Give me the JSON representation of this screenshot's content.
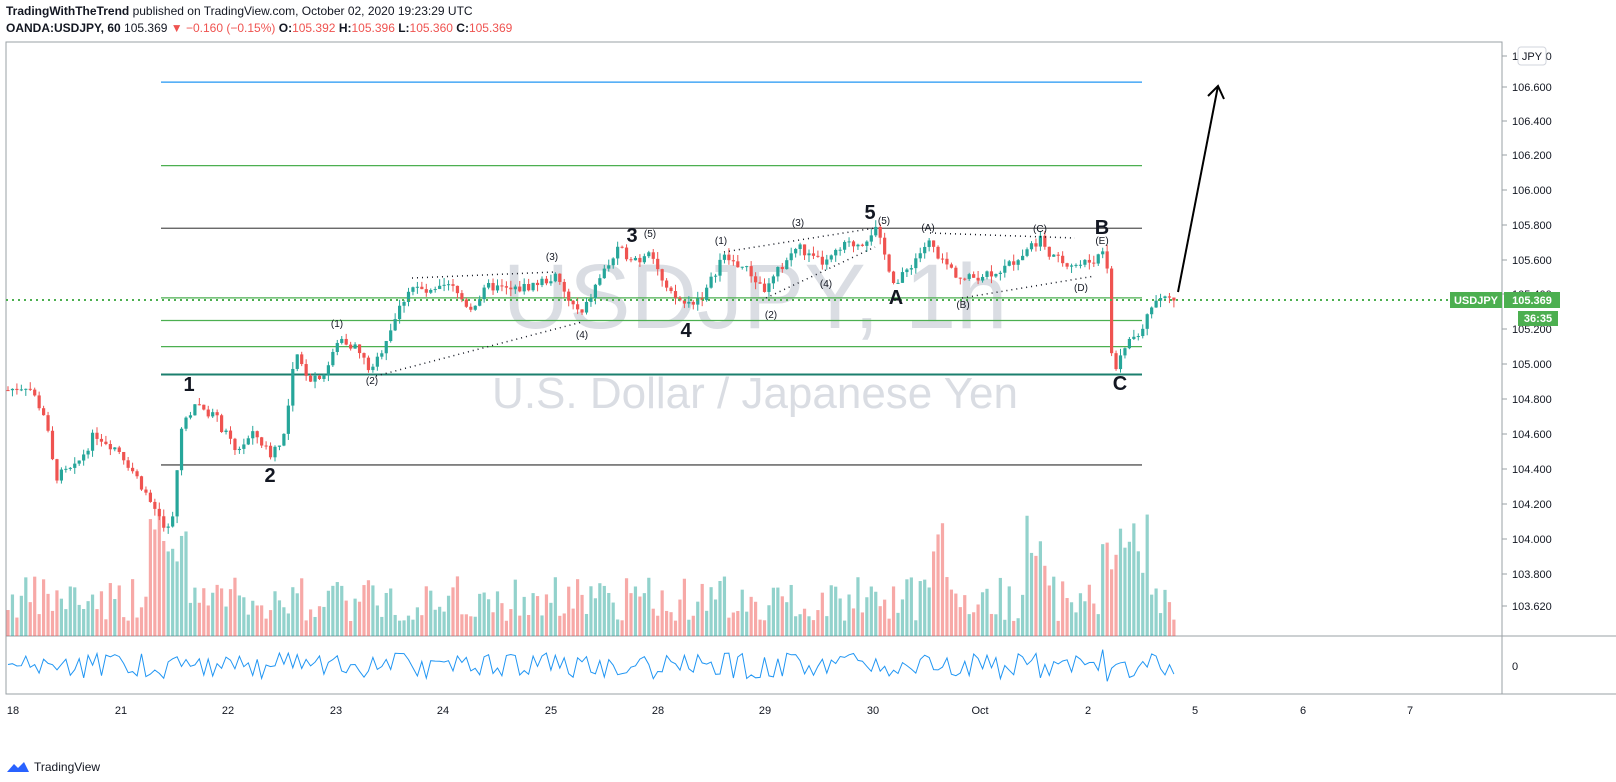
{
  "header": {
    "publisher": "TradingWithTheTrend",
    "published_text": "published on TradingView.com, October 02, 2020 19:23:29 UTC",
    "symbol": "OANDA:USDJPY, 60",
    "last": "105.369",
    "change": "▼ −0.160 (−0.15%)",
    "o_label": "O:",
    "o_value": "105.392",
    "h_label": "H:",
    "h_value": "105.396",
    "l_label": "L:",
    "l_value": "105.360",
    "c_label": "C:",
    "c_value": "105.369"
  },
  "watermark": {
    "title": "USDJPY, 1h",
    "subtitle": "U.S. Dollar / Japanese Yen"
  },
  "price_tag": {
    "symbol": "USDJPY",
    "price": "105.369",
    "countdown": "36:35"
  },
  "currency_button": "JPY",
  "branding": "TradingView",
  "colors": {
    "up": "#26a69a",
    "down": "#ef5350",
    "tag": "#4caf50",
    "hline_blue": "#2196f3",
    "hline_green": "#4caf50",
    "hline_gray": "#555555"
  },
  "chart_data": {
    "type": "candlestick",
    "y_axis_ticks": [
      "106.800",
      "106.600",
      "106.400",
      "106.200",
      "106.000",
      "105.800",
      "105.600",
      "105.400",
      "105.200",
      "105.000",
      "104.800",
      "104.600",
      "104.400",
      "104.200",
      "104.000",
      "103.800",
      "103.620"
    ],
    "x_axis_ticks": [
      "18",
      "21",
      "22",
      "23",
      "24",
      "25",
      "28",
      "29",
      "30",
      "Oct",
      "2",
      "5",
      "6",
      "7"
    ],
    "horizontal_lines": [
      {
        "price": 106.62,
        "color": "blue"
      },
      {
        "price": 106.14,
        "color": "green"
      },
      {
        "price": 105.78,
        "color": "gray"
      },
      {
        "price": 105.38,
        "color": "green"
      },
      {
        "price": 105.25,
        "color": "green"
      },
      {
        "price": 105.1,
        "color": "green"
      },
      {
        "price": 104.94,
        "color": "teal"
      },
      {
        "price": 104.42,
        "color": "gray"
      }
    ],
    "last_price": 105.369,
    "wave_labels_major": [
      "1",
      "2",
      "3",
      "4",
      "5",
      "A",
      "B",
      "C"
    ],
    "wave_labels_minor": [
      "(1)",
      "(2)",
      "(3)",
      "(4)",
      "(5)",
      "(1)",
      "(2)",
      "(3)",
      "(4)",
      "(5)",
      "(A)",
      "(B)",
      "(C)",
      "(D)",
      "(E)"
    ],
    "oscillator_zero_label": "0"
  }
}
